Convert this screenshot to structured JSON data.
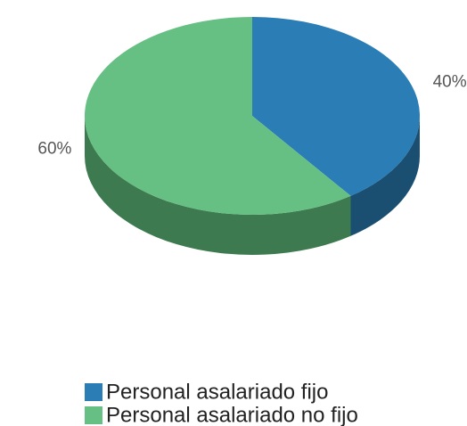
{
  "chart_data": {
    "type": "pie3d",
    "categories": [
      "Personal asalariado fijo",
      "Personal asalariado no fijo"
    ],
    "values": [
      40,
      60
    ],
    "value_labels": [
      "40%",
      "60%"
    ],
    "colors": [
      "#2a7db5",
      "#66c083"
    ],
    "side_colors": [
      "#1a4f72",
      "#3e7a4f"
    ],
    "legend": "bottom"
  }
}
